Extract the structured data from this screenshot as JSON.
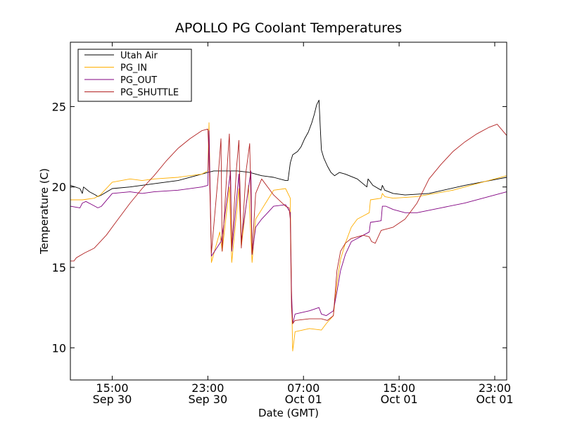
{
  "chart_data": {
    "type": "line",
    "title": "APOLLO PG Coolant Temperatures",
    "xlabel": "Date (GMT)",
    "ylabel": "Temperature (C)",
    "x_unit": "hours since Sep 30 10:00 GMT",
    "xlim": [
      0,
      36.5
    ],
    "ylim": [
      8,
      29
    ],
    "grid": false,
    "legend_position": "top-left",
    "yticks": [
      10,
      15,
      20,
      25
    ],
    "xticks": [
      {
        "x": 3.5,
        "time": "15:00",
        "date": "Sep 30"
      },
      {
        "x": 11.5,
        "time": "23:00",
        "date": "Sep 30"
      },
      {
        "x": 19.5,
        "time": "07:00",
        "date": "Oct 01"
      },
      {
        "x": 27.5,
        "time": "15:00",
        "date": "Oct 01"
      },
      {
        "x": 35.5,
        "time": "23:00",
        "date": "Oct 01"
      }
    ],
    "series": [
      {
        "name": "Utah Air",
        "color": "#000000",
        "points": [
          [
            0,
            20.1
          ],
          [
            0.4,
            20.0
          ],
          [
            0.8,
            19.9
          ],
          [
            1.0,
            19.6
          ],
          [
            1.1,
            20.0
          ],
          [
            1.6,
            19.7
          ],
          [
            2.1,
            19.5
          ],
          [
            2.3,
            19.4
          ],
          [
            2.6,
            19.5
          ],
          [
            3.5,
            19.9
          ],
          [
            5,
            20.0
          ],
          [
            7,
            20.2
          ],
          [
            9,
            20.4
          ],
          [
            11,
            20.8
          ],
          [
            11.5,
            20.9
          ],
          [
            12,
            21.0
          ],
          [
            13,
            21.0
          ],
          [
            14,
            21.0
          ],
          [
            15,
            20.9
          ],
          [
            16,
            20.7
          ],
          [
            17,
            20.6
          ],
          [
            18,
            20.4
          ],
          [
            18.2,
            20.4
          ],
          [
            18.4,
            21.5
          ],
          [
            18.6,
            22.0
          ],
          [
            19.0,
            22.2
          ],
          [
            19.3,
            22.5
          ],
          [
            19.6,
            23.0
          ],
          [
            19.9,
            23.4
          ],
          [
            20.2,
            24.0
          ],
          [
            20.4,
            24.5
          ],
          [
            20.6,
            25.1
          ],
          [
            20.8,
            25.4
          ],
          [
            20.9,
            23.8
          ],
          [
            21.0,
            22.3
          ],
          [
            21.2,
            21.8
          ],
          [
            21.5,
            21.3
          ],
          [
            21.8,
            20.9
          ],
          [
            22.1,
            20.7
          ],
          [
            22.5,
            20.9
          ],
          [
            23,
            20.8
          ],
          [
            24,
            20.5
          ],
          [
            24.8,
            20.0
          ],
          [
            24.9,
            20.5
          ],
          [
            25.3,
            20.1
          ],
          [
            26,
            19.8
          ],
          [
            26.1,
            20.1
          ],
          [
            26.3,
            19.8
          ],
          [
            27,
            19.6
          ],
          [
            28,
            19.5
          ],
          [
            30,
            19.6
          ],
          [
            33,
            20.1
          ],
          [
            36.5,
            20.6
          ]
        ]
      },
      {
        "name": "PG_IN",
        "color": "#ffae00",
        "points": [
          [
            0,
            19.2
          ],
          [
            1,
            19.2
          ],
          [
            2,
            19.3
          ],
          [
            2.5,
            19.5
          ],
          [
            3.5,
            20.3
          ],
          [
            5,
            20.5
          ],
          [
            6,
            20.4
          ],
          [
            7,
            20.5
          ],
          [
            9,
            20.6
          ],
          [
            11,
            20.8
          ],
          [
            11.5,
            21.0
          ],
          [
            11.6,
            24.0
          ],
          [
            11.8,
            15.3
          ],
          [
            12.5,
            17.2
          ],
          [
            12.7,
            16.0
          ],
          [
            13.3,
            20.0
          ],
          [
            13.5,
            15.3
          ],
          [
            14.1,
            19.9
          ],
          [
            14.3,
            16.3
          ],
          [
            14.9,
            20.1
          ],
          [
            15.2,
            15.3
          ],
          [
            15.5,
            18.0
          ],
          [
            16,
            18.6
          ],
          [
            17,
            19.8
          ],
          [
            18,
            19.9
          ],
          [
            18.4,
            19.3
          ],
          [
            18.5,
            13.5
          ],
          [
            18.6,
            9.8
          ],
          [
            18.8,
            11.0
          ],
          [
            20,
            11.2
          ],
          [
            21,
            11.1
          ],
          [
            21.4,
            11.5
          ],
          [
            22,
            12.0
          ],
          [
            22.3,
            14.0
          ],
          [
            22.6,
            15.5
          ],
          [
            23,
            16.5
          ],
          [
            23.5,
            17.5
          ],
          [
            24,
            18.0
          ],
          [
            24.5,
            18.2
          ],
          [
            25,
            18.4
          ],
          [
            25.1,
            19.2
          ],
          [
            26,
            19.3
          ],
          [
            26.1,
            19.6
          ],
          [
            26.3,
            19.4
          ],
          [
            27,
            19.3
          ],
          [
            29,
            19.4
          ],
          [
            32,
            19.8
          ],
          [
            34,
            20.2
          ],
          [
            36.5,
            20.7
          ]
        ]
      },
      {
        "name": "PG_OUT",
        "color": "#800080",
        "points": [
          [
            0,
            18.8
          ],
          [
            0.8,
            18.7
          ],
          [
            1.0,
            19.0
          ],
          [
            1.3,
            19.1
          ],
          [
            2.3,
            18.7
          ],
          [
            2.6,
            18.8
          ],
          [
            3.5,
            19.6
          ],
          [
            5,
            19.7
          ],
          [
            6,
            19.6
          ],
          [
            7,
            19.7
          ],
          [
            9,
            19.8
          ],
          [
            11,
            20.0
          ],
          [
            11.5,
            20.1
          ],
          [
            11.6,
            23.5
          ],
          [
            11.8,
            15.7
          ],
          [
            12.6,
            16.6
          ],
          [
            12.8,
            17.5
          ],
          [
            13.4,
            21.0
          ],
          [
            13.5,
            16.0
          ],
          [
            14.1,
            20.8
          ],
          [
            14.3,
            16.7
          ],
          [
            15.1,
            21.0
          ],
          [
            15.2,
            15.8
          ],
          [
            15.5,
            17.5
          ],
          [
            16,
            18.0
          ],
          [
            16.5,
            18.4
          ],
          [
            17,
            18.8
          ],
          [
            18,
            18.9
          ],
          [
            18.4,
            18.4
          ],
          [
            18.5,
            13.5
          ],
          [
            18.6,
            11.5
          ],
          [
            18.8,
            12.1
          ],
          [
            20,
            12.3
          ],
          [
            20.8,
            12.5
          ],
          [
            21.0,
            12.1
          ],
          [
            21.4,
            12.0
          ],
          [
            22,
            12.3
          ],
          [
            22.3,
            13.5
          ],
          [
            22.6,
            14.8
          ],
          [
            23,
            15.8
          ],
          [
            23.5,
            16.6
          ],
          [
            24,
            16.8
          ],
          [
            24.5,
            17.0
          ],
          [
            25,
            17.2
          ],
          [
            25.1,
            17.8
          ],
          [
            26,
            17.9
          ],
          [
            26.1,
            18.8
          ],
          [
            26.4,
            18.8
          ],
          [
            27,
            18.6
          ],
          [
            28,
            18.4
          ],
          [
            29,
            18.4
          ],
          [
            31,
            18.7
          ],
          [
            33,
            19.0
          ],
          [
            36.5,
            19.7
          ]
        ]
      },
      {
        "name": "PG_SHUTTLE",
        "color": "#b22222",
        "points": [
          [
            0,
            15.4
          ],
          [
            0.3,
            15.4
          ],
          [
            0.5,
            15.6
          ],
          [
            1.2,
            15.9
          ],
          [
            2,
            16.2
          ],
          [
            3,
            17.0
          ],
          [
            4,
            18.0
          ],
          [
            5,
            19.0
          ],
          [
            6,
            19.9
          ],
          [
            7,
            20.7
          ],
          [
            8,
            21.6
          ],
          [
            9,
            22.4
          ],
          [
            10,
            23.0
          ],
          [
            11,
            23.5
          ],
          [
            11.5,
            23.6
          ],
          [
            11.6,
            22.0
          ],
          [
            11.8,
            15.9
          ],
          [
            12.4,
            21.0
          ],
          [
            12.6,
            23.0
          ],
          [
            12.7,
            16.0
          ],
          [
            13.1,
            21.0
          ],
          [
            13.3,
            23.3
          ],
          [
            13.5,
            16.2
          ],
          [
            13.9,
            21.2
          ],
          [
            14.1,
            22.9
          ],
          [
            14.3,
            16.2
          ],
          [
            14.7,
            21.0
          ],
          [
            15.0,
            22.7
          ],
          [
            15.2,
            15.9
          ],
          [
            15.5,
            19.6
          ],
          [
            16,
            20.5
          ],
          [
            17,
            19.5
          ],
          [
            18,
            18.8
          ],
          [
            18.3,
            18.7
          ],
          [
            18.4,
            18.0
          ],
          [
            18.5,
            12.5
          ],
          [
            18.6,
            11.5
          ],
          [
            18.8,
            11.7
          ],
          [
            20,
            11.8
          ],
          [
            21,
            11.8
          ],
          [
            21.5,
            11.7
          ],
          [
            22,
            12.0
          ],
          [
            22.3,
            14.8
          ],
          [
            22.6,
            16.0
          ],
          [
            23,
            16.5
          ],
          [
            23.5,
            16.8
          ],
          [
            24,
            16.9
          ],
          [
            24.5,
            17.0
          ],
          [
            25,
            16.9
          ],
          [
            25.2,
            16.6
          ],
          [
            25.5,
            16.5
          ],
          [
            26,
            17.3
          ],
          [
            27,
            17.5
          ],
          [
            28,
            18.0
          ],
          [
            29,
            19.0
          ],
          [
            30,
            20.5
          ],
          [
            31,
            21.4
          ],
          [
            32,
            22.2
          ],
          [
            33,
            22.8
          ],
          [
            34,
            23.3
          ],
          [
            35,
            23.7
          ],
          [
            35.7,
            23.9
          ],
          [
            36.5,
            23.2
          ]
        ]
      }
    ]
  }
}
